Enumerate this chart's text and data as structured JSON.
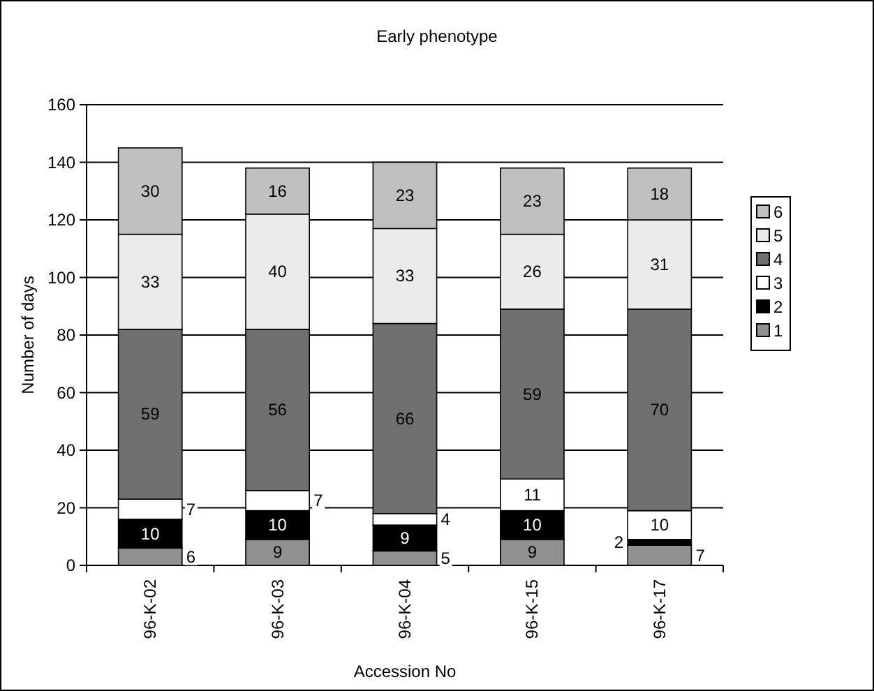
{
  "chart_data": {
    "type": "bar",
    "title": "Early phenotype",
    "xlabel": "Accession No",
    "ylabel": "Number of days",
    "categories": [
      "96-K-02",
      "96-K-03",
      "96-K-04",
      "96-K-15",
      "96-K-17"
    ],
    "stacked": true,
    "data_labels": true,
    "legend": "right",
    "grid": "y",
    "ylim": [
      0,
      160
    ],
    "yticks": [
      0,
      20,
      40,
      60,
      80,
      100,
      120,
      140,
      160
    ],
    "series": [
      {
        "name": "1",
        "color": "#909090",
        "values": [
          6,
          9,
          5,
          9,
          7
        ]
      },
      {
        "name": "2",
        "color": "#000000",
        "values": [
          10,
          10,
          9,
          10,
          2
        ]
      },
      {
        "name": "3",
        "color": "#ffffff",
        "values": [
          7,
          7,
          4,
          11,
          10
        ]
      },
      {
        "name": "4",
        "color": "#707070",
        "values": [
          59,
          56,
          66,
          59,
          70
        ]
      },
      {
        "name": "5",
        "color": "#ebebeb",
        "values": [
          33,
          40,
          33,
          26,
          31
        ]
      },
      {
        "name": "6",
        "color": "#c0c0c0",
        "values": [
          30,
          16,
          23,
          23,
          18
        ]
      }
    ]
  }
}
